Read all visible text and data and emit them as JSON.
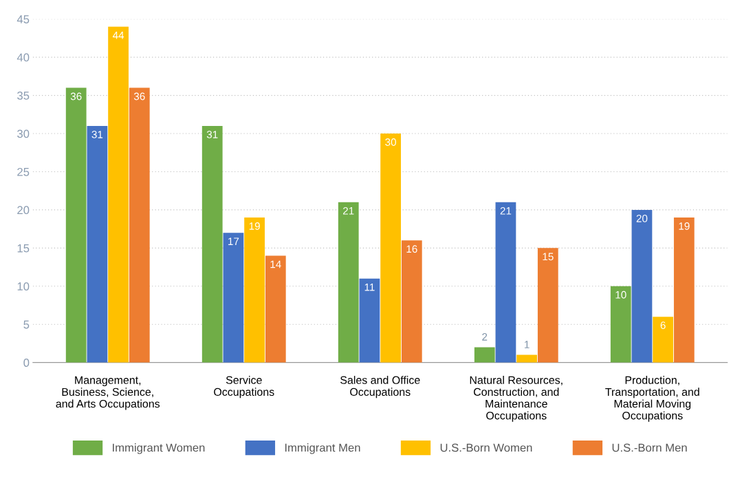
{
  "chart_data": {
    "type": "bar",
    "categories": [
      "Management,\nBusiness, Science,\nand Arts Occupations",
      "Service\nOccupations",
      "Sales and Office\nOccupations",
      "Natural Resources,\nConstruction, and\nMaintenance\nOccupations",
      "Production,\nTransportation, and\nMaterial Moving\nOccupations"
    ],
    "series": [
      {
        "name": "Immigrant Women",
        "color": "#70ad47",
        "values": [
          36,
          31,
          21,
          2,
          10
        ]
      },
      {
        "name": "Immigrant Men",
        "color": "#4472c4",
        "values": [
          31,
          17,
          11,
          21,
          20
        ]
      },
      {
        "name": "U.S.-Born Women",
        "color": "#ffc000",
        "values": [
          44,
          19,
          30,
          1,
          6
        ]
      },
      {
        "name": "U.S.-Born Men",
        "color": "#ed7d31",
        "values": [
          36,
          14,
          16,
          15,
          19
        ]
      }
    ],
    "ylim": [
      0,
      45
    ],
    "yticks": [
      0,
      5,
      10,
      15,
      20,
      25,
      30,
      35,
      40,
      45
    ],
    "grid": "y",
    "legend": "bottom",
    "data_labels": true
  }
}
